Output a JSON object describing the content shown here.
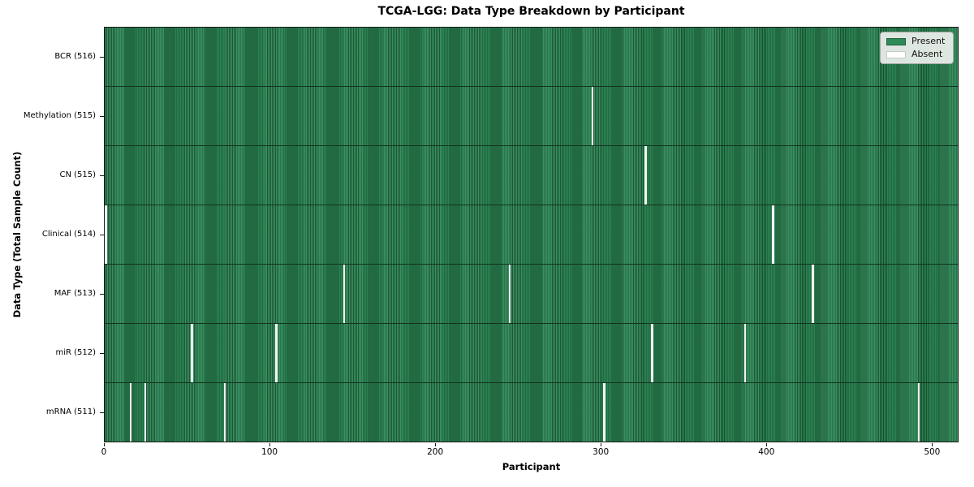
{
  "chart_data": {
    "type": "heatmap",
    "title": "TCGA-LGG: Data Type Breakdown by Participant",
    "xlabel": "Participant",
    "ylabel": "Data Type (Total Sample Count)",
    "total_participants": 516,
    "x_range": [
      0,
      516
    ],
    "x_ticks": [
      0,
      100,
      200,
      300,
      400,
      500
    ],
    "grid": false,
    "legend_position": "upper right",
    "colors": {
      "present": "#2e8b57",
      "absent": "#f2f2f2",
      "cell_edge": "#12331f"
    },
    "legend": [
      {
        "label": "Present",
        "color": "#2e8b57"
      },
      {
        "label": "Absent",
        "color": "#ffffff"
      }
    ],
    "rows": [
      {
        "label": "BCR (516)",
        "sample_count": 516,
        "absent_participants": []
      },
      {
        "label": "Methylation (515)",
        "sample_count": 515,
        "absent_participants": [
          294
        ]
      },
      {
        "label": "CN (515)",
        "sample_count": 515,
        "absent_participants": [
          326
        ]
      },
      {
        "label": "Clinical (514)",
        "sample_count": 514,
        "absent_participants": [
          0,
          403
        ]
      },
      {
        "label": "MAF (513)",
        "sample_count": 513,
        "absent_participants": [
          144,
          244,
          427
        ]
      },
      {
        "label": "miR (512)",
        "sample_count": 512,
        "absent_participants": [
          52,
          103,
          330,
          386
        ]
      },
      {
        "label": "mRNA (511)",
        "sample_count": 511,
        "absent_participants": [
          15,
          24,
          72,
          301,
          491
        ]
      }
    ]
  }
}
